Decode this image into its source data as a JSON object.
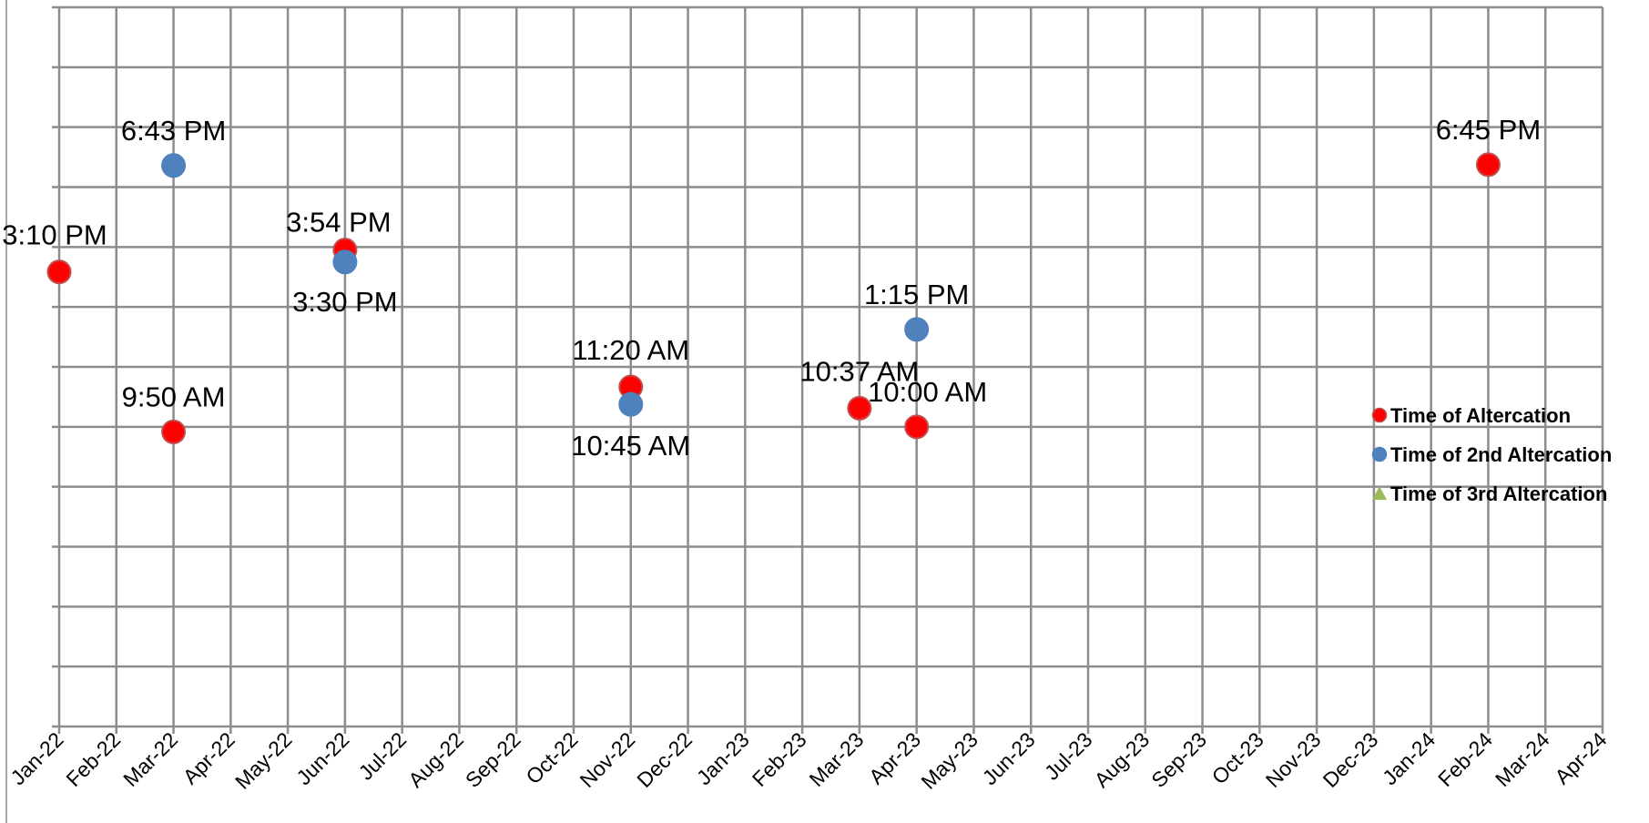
{
  "chart_data": {
    "type": "scatter",
    "title": "",
    "xlabel": "",
    "ylabel": "",
    "x_categories": [
      "Jan-22",
      "Feb-22",
      "Mar-22",
      "Apr-22",
      "May-22",
      "Jun-22",
      "Jul-22",
      "Aug-22",
      "Sep-22",
      "Oct-22",
      "Nov-22",
      "Dec-22",
      "Jan-23",
      "Feb-23",
      "Mar-23",
      "Apr-23",
      "May-23",
      "Jun-23",
      "Jul-23",
      "Aug-23",
      "Sep-23",
      "Oct-23",
      "Nov-23",
      "Dec-23",
      "Jan-24",
      "Feb-24",
      "Mar-24",
      "Apr-24"
    ],
    "xlim": [
      "Jan-22",
      "Apr-24"
    ],
    "ylim_hours": [
      0,
      24
    ],
    "y_gridlines_hours": 2,
    "grid": true,
    "legend_position": "right",
    "series": [
      {
        "name": "Time of Altercation",
        "marker": "circle",
        "color": "#ff0000",
        "points": [
          {
            "x": "Jan-22",
            "y_hours": 15.17,
            "label": "3:10 PM"
          },
          {
            "x": "Mar-22",
            "y_hours": 9.83,
            "label": "9:50 AM"
          },
          {
            "x": "Jun-22",
            "y_hours": 15.9,
            "label": "3:54 PM"
          },
          {
            "x": "Nov-22",
            "y_hours": 11.33,
            "label": "11:20 AM"
          },
          {
            "x": "Mar-23",
            "y_hours": 10.62,
            "label": "10:37 AM"
          },
          {
            "x": "Apr-23",
            "y_hours": 10.0,
            "label": "10:00 AM"
          },
          {
            "x": "Feb-24",
            "y_hours": 18.75,
            "label": "6:45 PM"
          }
        ]
      },
      {
        "name": "Time of 2nd Altercation",
        "marker": "circle",
        "color": "#4f81bd",
        "points": [
          {
            "x": "Mar-22",
            "y_hours": 18.72,
            "label": "6:43 PM"
          },
          {
            "x": "Jun-22",
            "y_hours": 15.5,
            "label": "3:30 PM"
          },
          {
            "x": "Nov-22",
            "y_hours": 10.75,
            "label": "10:45 AM"
          },
          {
            "x": "Apr-23",
            "y_hours": 13.25,
            "label": "1:15 PM"
          }
        ]
      },
      {
        "name": "Time of 3rd Altercation",
        "marker": "triangle",
        "color": "#9bbb59",
        "points": []
      }
    ]
  }
}
